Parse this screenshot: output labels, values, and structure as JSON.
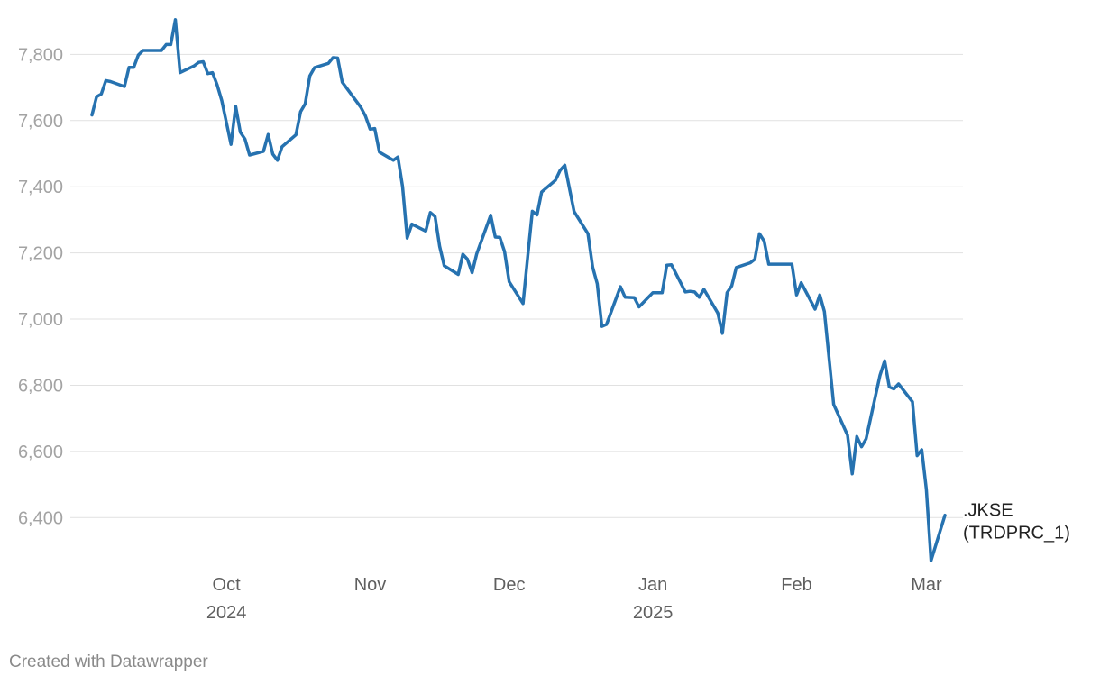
{
  "footer": {
    "credit": "Created with Datawrapper"
  },
  "colors": {
    "line": "#2672b0",
    "grid": "#e1e1e1",
    "tick": "#a3a3a3",
    "month": "#5f5f5f"
  },
  "chart_data": {
    "type": "line",
    "title": "",
    "xlabel": "",
    "ylabel": "",
    "ylim": [
      6270,
      7910
    ],
    "yticks": [
      6400,
      6600,
      6800,
      7000,
      7200,
      7400,
      7600,
      7800
    ],
    "ytick_labels": [
      "6,400",
      "6,600",
      "6,800",
      "7,000",
      "7,200",
      "7,400",
      "7,600",
      "7,800"
    ],
    "xlim": [
      "2024-09-02",
      "2025-03-05"
    ],
    "xticks": [
      {
        "date": "2024-10-01",
        "label": "Oct",
        "sub": "2024"
      },
      {
        "date": "2024-11-01",
        "label": "Nov",
        "sub": ""
      },
      {
        "date": "2024-12-01",
        "label": "Dec",
        "sub": ""
      },
      {
        "date": "2025-01-01",
        "label": "Jan",
        "sub": "2025"
      },
      {
        "date": "2025-02-01",
        "label": "Feb",
        "sub": ""
      },
      {
        "date": "2025-03-01",
        "label": "Mar",
        "sub": ""
      }
    ],
    "grid": true,
    "legend": "none",
    "series": [
      {
        "name": ".JKSE (TRDPRC_1)",
        "label_lines": [
          ".JKSE",
          "(TRDPRC_1)"
        ],
        "color": "#2672b0",
        "points": [
          [
            "2024-09-02",
            7617
          ],
          [
            "2024-09-03",
            7672
          ],
          [
            "2024-09-04",
            7680
          ],
          [
            "2024-09-05",
            7721
          ],
          [
            "2024-09-06",
            7718
          ],
          [
            "2024-09-09",
            7703
          ],
          [
            "2024-09-10",
            7761
          ],
          [
            "2024-09-11",
            7761
          ],
          [
            "2024-09-12",
            7798
          ],
          [
            "2024-09-13",
            7812
          ],
          [
            "2024-09-16",
            7812
          ],
          [
            "2024-09-17",
            7812
          ],
          [
            "2024-09-18",
            7830
          ],
          [
            "2024-09-19",
            7830
          ],
          [
            "2024-09-20",
            7905
          ],
          [
            "2024-09-21",
            7745
          ],
          [
            "2024-09-24",
            7765
          ],
          [
            "2024-09-25",
            7776
          ],
          [
            "2024-09-26",
            7778
          ],
          [
            "2024-09-27",
            7742
          ],
          [
            "2024-09-28",
            7745
          ],
          [
            "2024-09-29",
            7708
          ],
          [
            "2024-09-30",
            7660
          ],
          [
            "2024-10-02",
            7528
          ],
          [
            "2024-10-03",
            7643
          ],
          [
            "2024-10-04",
            7565
          ],
          [
            "2024-10-05",
            7544
          ],
          [
            "2024-10-06",
            7496
          ],
          [
            "2024-10-09",
            7507
          ],
          [
            "2024-10-10",
            7558
          ],
          [
            "2024-10-11",
            7499
          ],
          [
            "2024-10-12",
            7480
          ],
          [
            "2024-10-13",
            7521
          ],
          [
            "2024-10-16",
            7557
          ],
          [
            "2024-10-17",
            7627
          ],
          [
            "2024-10-18",
            7651
          ],
          [
            "2024-10-19",
            7735
          ],
          [
            "2024-10-20",
            7760
          ],
          [
            "2024-10-23",
            7773
          ],
          [
            "2024-10-24",
            7790
          ],
          [
            "2024-10-25",
            7789
          ],
          [
            "2024-10-26",
            7716
          ],
          [
            "2024-10-30",
            7640
          ],
          [
            "2024-10-31",
            7614
          ],
          [
            "2024-11-01",
            7574
          ],
          [
            "2024-11-02",
            7576
          ],
          [
            "2024-11-03",
            7505
          ],
          [
            "2024-11-06",
            7480
          ],
          [
            "2024-11-07",
            7490
          ],
          [
            "2024-11-08",
            7400
          ],
          [
            "2024-11-09",
            7245
          ],
          [
            "2024-11-10",
            7287
          ],
          [
            "2024-11-13",
            7266
          ],
          [
            "2024-11-14",
            7322
          ],
          [
            "2024-11-15",
            7310
          ],
          [
            "2024-11-16",
            7220
          ],
          [
            "2024-11-17",
            7161
          ],
          [
            "2024-11-20",
            7135
          ],
          [
            "2024-11-21",
            7196
          ],
          [
            "2024-11-22",
            7181
          ],
          [
            "2024-11-23",
            7140
          ],
          [
            "2024-11-24",
            7197
          ],
          [
            "2024-11-27",
            7314
          ],
          [
            "2024-11-28",
            7248
          ],
          [
            "2024-11-29",
            7247
          ],
          [
            "2024-11-30",
            7204
          ],
          [
            "2024-12-01",
            7113
          ],
          [
            "2024-12-04",
            7047
          ],
          [
            "2024-12-05",
            7190
          ],
          [
            "2024-12-06",
            7326
          ],
          [
            "2024-12-07",
            7315
          ],
          [
            "2024-12-08",
            7384
          ],
          [
            "2024-12-11",
            7420
          ],
          [
            "2024-12-12",
            7450
          ],
          [
            "2024-12-13",
            7465
          ],
          [
            "2024-12-15",
            7325
          ],
          [
            "2024-12-18",
            7258
          ],
          [
            "2024-12-19",
            7157
          ],
          [
            "2024-12-20",
            7107
          ],
          [
            "2024-12-21",
            6978
          ],
          [
            "2024-12-22",
            6984
          ],
          [
            "2024-12-25",
            7098
          ],
          [
            "2024-12-26",
            7066
          ],
          [
            "2024-12-28",
            7065
          ],
          [
            "2024-12-29",
            7037
          ],
          [
            "2025-01-01",
            7080
          ],
          [
            "2025-01-02",
            7080
          ],
          [
            "2025-01-03",
            7080
          ],
          [
            "2025-01-04",
            7163
          ],
          [
            "2025-01-05",
            7164
          ],
          [
            "2025-01-08",
            7082
          ],
          [
            "2025-01-09",
            7084
          ],
          [
            "2025-01-10",
            7082
          ],
          [
            "2025-01-11",
            7066
          ],
          [
            "2025-01-12",
            7090
          ],
          [
            "2025-01-15",
            7018
          ],
          [
            "2025-01-16",
            6957
          ],
          [
            "2025-01-17",
            7080
          ],
          [
            "2025-01-18",
            7100
          ],
          [
            "2025-01-19",
            7156
          ],
          [
            "2025-01-22",
            7170
          ],
          [
            "2025-01-23",
            7181
          ],
          [
            "2025-01-24",
            7258
          ],
          [
            "2025-01-25",
            7236
          ],
          [
            "2025-01-26",
            7166
          ],
          [
            "2025-01-29",
            7166
          ],
          [
            "2025-01-30",
            7166
          ],
          [
            "2025-01-31",
            7166
          ],
          [
            "2025-02-01",
            7073
          ],
          [
            "2025-02-02",
            7110
          ],
          [
            "2025-02-05",
            7030
          ],
          [
            "2025-02-06",
            7073
          ],
          [
            "2025-02-07",
            7023
          ],
          [
            "2025-02-08",
            6882
          ],
          [
            "2025-02-09",
            6742
          ],
          [
            "2025-02-12",
            6649
          ],
          [
            "2025-02-13",
            6532
          ],
          [
            "2025-02-14",
            6645
          ],
          [
            "2025-02-15",
            6614
          ],
          [
            "2025-02-16",
            6638
          ],
          [
            "2025-02-19",
            6830
          ],
          [
            "2025-02-20",
            6874
          ],
          [
            "2025-02-21",
            6795
          ],
          [
            "2025-02-22",
            6789
          ],
          [
            "2025-02-23",
            6804
          ],
          [
            "2025-02-26",
            6750
          ],
          [
            "2025-02-27",
            6587
          ],
          [
            "2025-02-28",
            6605
          ],
          [
            "2025-03-01",
            6485
          ],
          [
            "2025-03-02",
            6270
          ],
          [
            "2025-03-05",
            6407
          ]
        ]
      }
    ]
  }
}
